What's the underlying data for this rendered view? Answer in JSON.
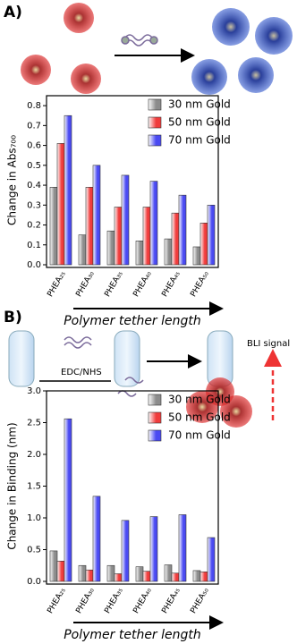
{
  "chart_data": [
    {
      "type": "bar",
      "panel_label": "A)",
      "y_label": "Change in Abs₇₀₀",
      "x_label": "Polymer tether length",
      "categories": [
        "PHEA₂₅",
        "PHEA₃₀",
        "PHEA₃₅",
        "PHEA₄₀",
        "PHEA₄₅",
        "PHEA₅₀"
      ],
      "series": [
        {
          "name": "30 nm Gold",
          "color": "#8c8c8c",
          "values": [
            0.39,
            0.15,
            0.17,
            0.12,
            0.13,
            0.09
          ]
        },
        {
          "name": "50 nm Gold",
          "color": "#f03c3c",
          "values": [
            0.61,
            0.39,
            0.29,
            0.29,
            0.26,
            0.21
          ]
        },
        {
          "name": "70 nm Gold",
          "color": "#4a4af2",
          "values": [
            0.75,
            0.5,
            0.45,
            0.42,
            0.35,
            0.3
          ]
        }
      ],
      "ylim": [
        0,
        0.85
      ],
      "yticks": [
        {
          "value": 0,
          "label": "0.0"
        },
        0.1,
        0.2,
        0.3,
        0.4,
        0.5,
        0.6,
        0.7,
        0.8
      ],
      "legend": "top-right"
    },
    {
      "type": "bar",
      "panel_label": "B)",
      "y_label": "Change in Binding (nm)",
      "x_label": "Polymer tether length",
      "annotations": [
        "EDC/NHS",
        "BLI signal"
      ],
      "categories": [
        "PHEA₂₅",
        "PHEA₃₀",
        "PHEA₃₅",
        "PHEA₄₀",
        "PHEA₄₅",
        "PHEA₅₀"
      ],
      "series": [
        {
          "name": "30 nm Gold",
          "color": "#8c8c8c",
          "values": [
            0.48,
            0.25,
            0.25,
            0.23,
            0.26,
            0.17
          ]
        },
        {
          "name": "50 nm Gold",
          "color": "#f03c3c",
          "values": [
            0.32,
            0.18,
            0.12,
            0.16,
            0.13,
            0.15
          ]
        },
        {
          "name": "70 nm Gold",
          "color": "#4a4af2",
          "values": [
            2.56,
            1.34,
            0.96,
            1.02,
            1.05,
            0.69
          ]
        }
      ],
      "ylim": [
        0,
        3.0
      ],
      "yticks": [
        {
          "value": 0,
          "label": "0.0"
        },
        0.5,
        {
          "value": 1,
          "label": "1.0"
        },
        1.5,
        {
          "value": 2,
          "label": "2.0"
        },
        2.5,
        {
          "value": 3,
          "label": "3.0"
        }
      ],
      "legend": "top-right"
    }
  ]
}
